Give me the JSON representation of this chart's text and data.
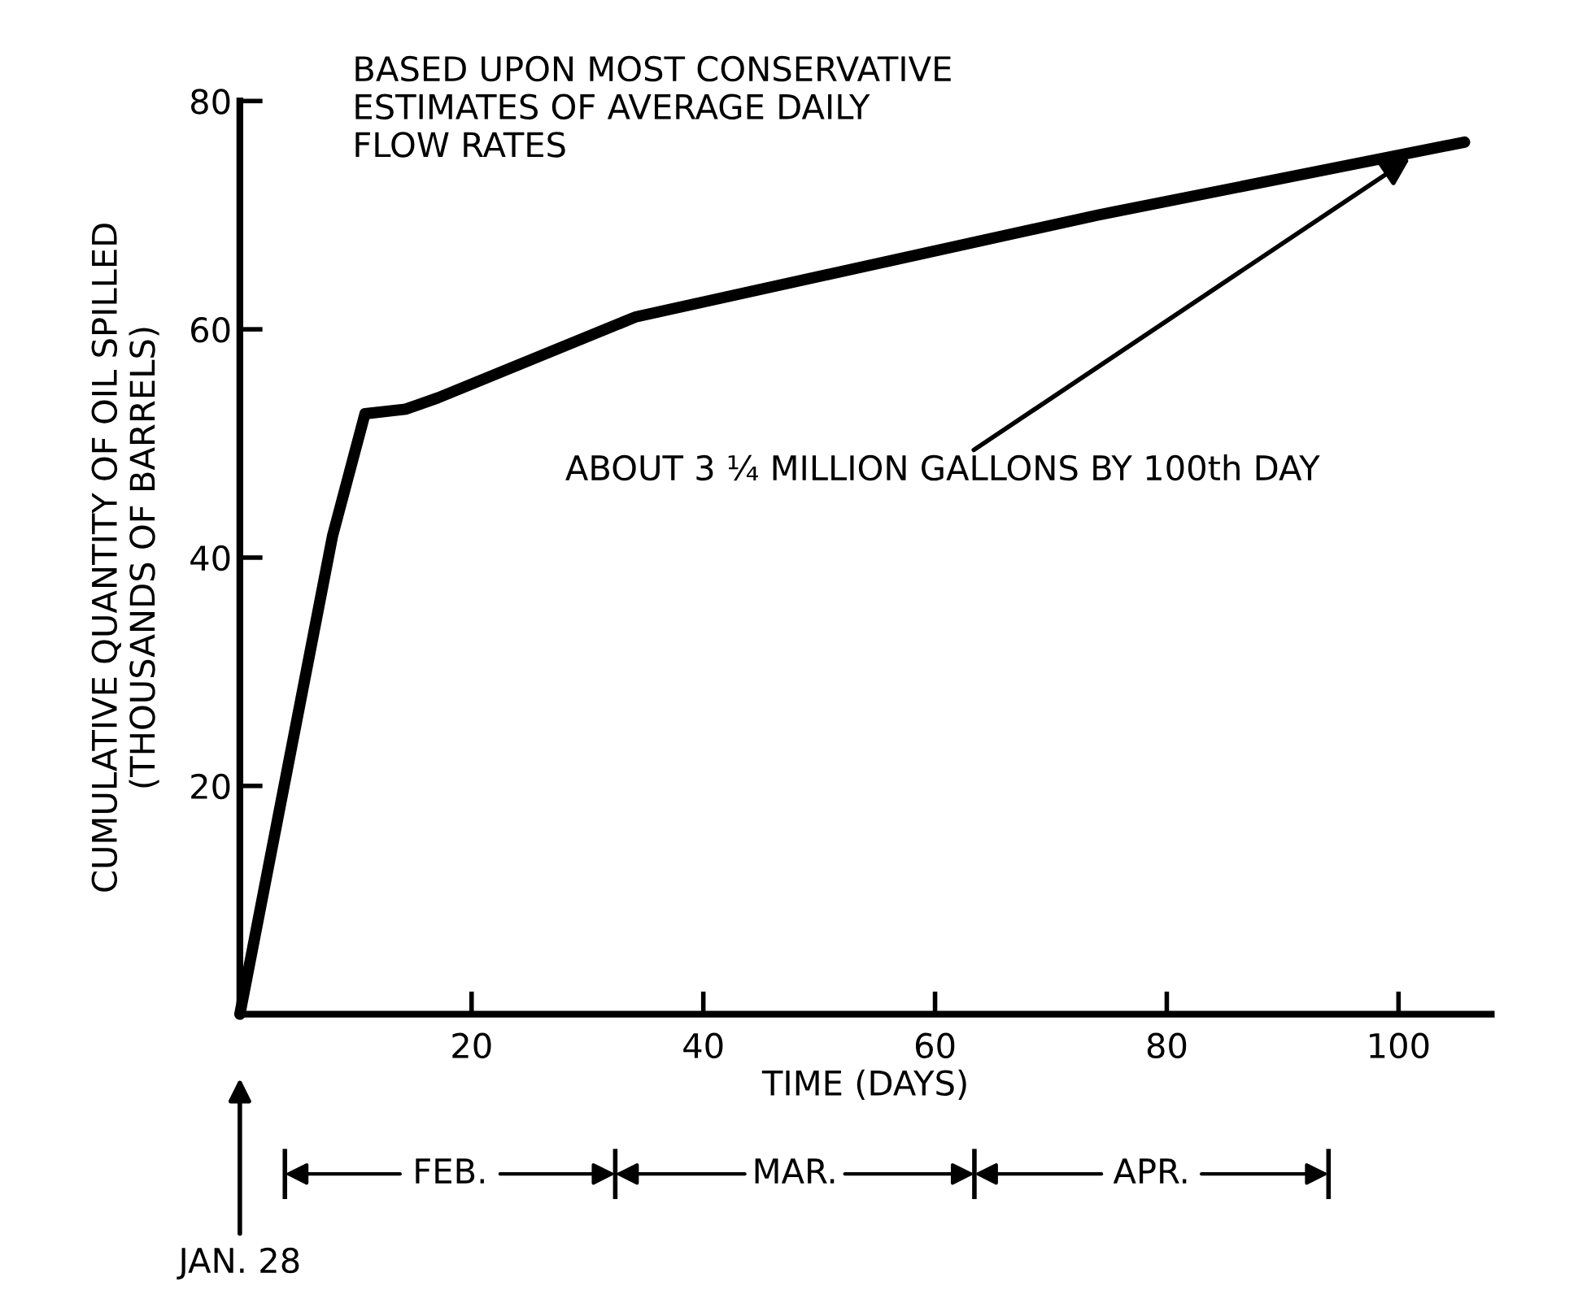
{
  "chart_data": {
    "type": "line",
    "title": "BASED UPON MOST CONSERVATIVE\nESTIMATES OF AVERAGE DAILY\nFLOW RATES",
    "xlabel": "TIME (DAYS)",
    "ylabel": "CUMULATIVE QUANTITY OF OIL SPILLED\n(THOUSANDS OF BARRELS)",
    "series": [
      {
        "color": "#000000",
        "x": [
          0,
          8,
          10.8,
          14.3,
          17.1,
          34.2,
          74,
          105.7
        ],
        "values": [
          0,
          41.9,
          52.6,
          53,
          54,
          61.1,
          70,
          76.4
        ]
      }
    ],
    "xlim": [
      0,
      108
    ],
    "xticks": [
      {
        "value": 0,
        "label": null
      },
      20,
      40,
      60,
      80,
      100
    ],
    "ylim": [
      0,
      80
    ],
    "yticks": [
      {
        "value": 0,
        "label": null
      },
      20,
      40,
      60,
      80
    ],
    "grid": false,
    "legend": false,
    "marker": "none",
    "line_style": "solid",
    "annotations": [
      {
        "text": "ABOUT 3 ¼ MILLION GALLONS BY 100th DAY",
        "x": 101,
        "y": 75
      },
      "FEB.",
      "MAR.",
      "APR.",
      "JAN. 28"
    ]
  }
}
